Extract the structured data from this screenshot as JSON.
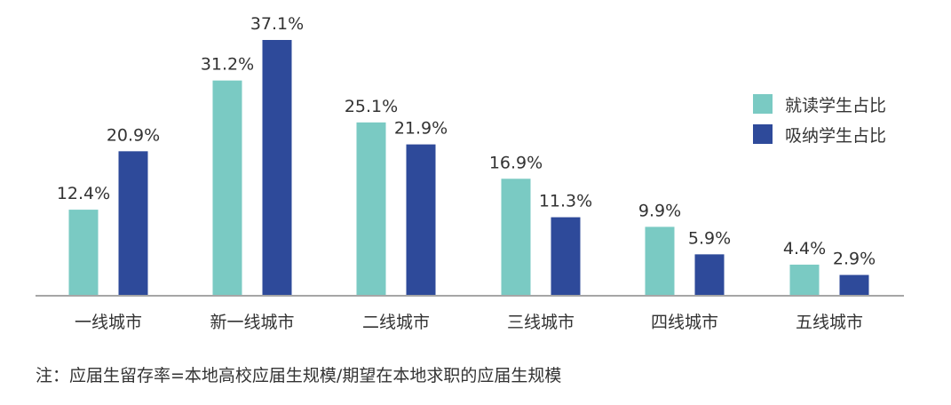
{
  "chart_data": {
    "type": "bar",
    "categories": [
      "一线城市",
      "新一线城市",
      "二线城市",
      "三线城市",
      "四线城市",
      "五线城市"
    ],
    "series": [
      {
        "name": "就读学生占比",
        "color": "#7ACAC3",
        "values": [
          12.4,
          31.2,
          25.1,
          16.9,
          9.9,
          4.4
        ],
        "labels": [
          "12.4%",
          "31.2%",
          "25.1%",
          "16.9%",
          "9.9%",
          "4.4%"
        ]
      },
      {
        "name": "吸纳学生占比",
        "color": "#2E4A9A",
        "values": [
          20.9,
          37.1,
          21.9,
          11.3,
          5.9,
          2.9
        ],
        "labels": [
          "20.9%",
          "37.1%",
          "21.9%",
          "11.3%",
          "5.9%",
          "2.9%"
        ]
      }
    ],
    "ylim": [
      0,
      37.1
    ],
    "grid": false,
    "legend_position": "right"
  },
  "note": "注：应届生留存率=本地高校应届生规模/期望在本地求职的应届生规模"
}
